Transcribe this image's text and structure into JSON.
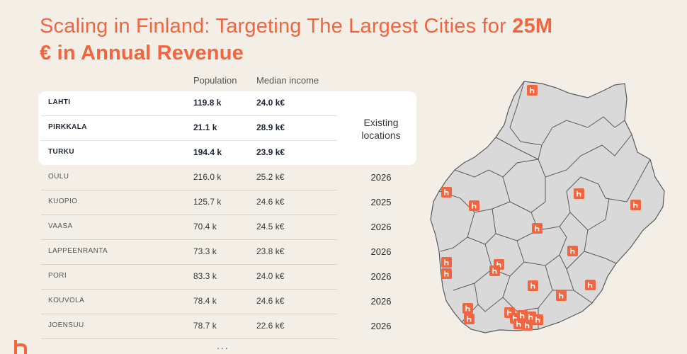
{
  "title": {
    "regular": "Scaling in Finland: Targeting The Largest Cities for ",
    "bold_1": "25M",
    "bold_2": "€ in Annual Revenue"
  },
  "table": {
    "headers": {
      "population": "Population",
      "income": "Median income"
    },
    "existing_label": "Existing locations",
    "rows": [
      {
        "city": "LAHTI",
        "population": "119.8 k",
        "income": "24.0 k€",
        "year": ""
      },
      {
        "city": "PIRKKALA",
        "population": "21.1 k",
        "income": "28.9 k€",
        "year": ""
      },
      {
        "city": "TURKU",
        "population": "194.4 k",
        "income": "23.9 k€",
        "year": ""
      },
      {
        "city": "OULU",
        "population": "216.0 k",
        "income": "25.2 k€",
        "year": "2026"
      },
      {
        "city": "KUOPIO",
        "population": "125.7 k",
        "income": "24.6 k€",
        "year": "2025"
      },
      {
        "city": "VAASA",
        "population": "70.4 k",
        "income": "24.5 k€",
        "year": "2026"
      },
      {
        "city": "LAPPEENRANTA",
        "population": "73.3 k",
        "income": "23.8 k€",
        "year": "2026"
      },
      {
        "city": "PORI",
        "population": "83.3 k",
        "income": "24.0 k€",
        "year": "2026"
      },
      {
        "city": "KOUVOLA",
        "population": "78.4 k",
        "income": "24.6 k€",
        "year": "2026"
      },
      {
        "city": "JOENSUU",
        "population": "78.7 k",
        "income": "22.6 k€",
        "year": "2026"
      }
    ],
    "more": "..."
  },
  "colors": {
    "accent": "#f2653f",
    "background": "#f3efe6",
    "map_fill": "#d9d9d9",
    "map_border": "#5a5a5a"
  },
  "icons": {
    "location_pin": "brand-h-icon",
    "logo": "brand-h-logo-icon"
  }
}
